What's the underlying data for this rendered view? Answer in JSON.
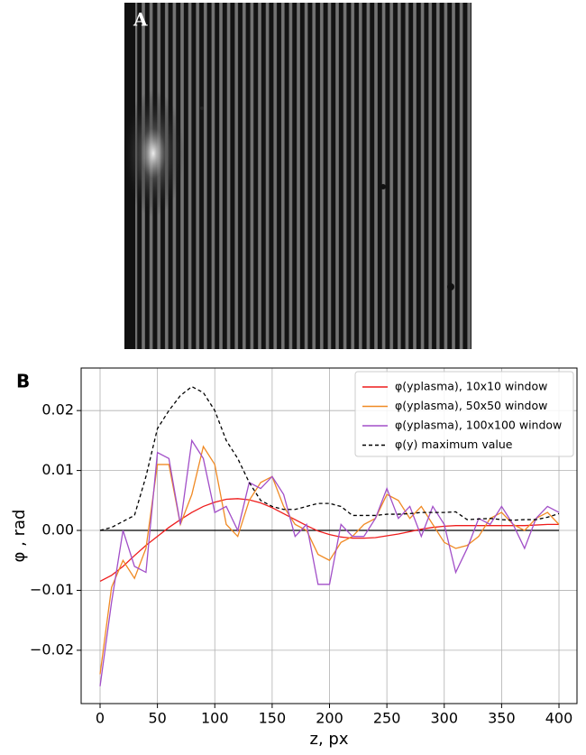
{
  "panel_labels": [
    "A",
    "B"
  ],
  "chart_data": {
    "type": "line",
    "x_label": "z, px",
    "y_label": "φ  , rad",
    "x": [
      0,
      10,
      20,
      30,
      40,
      50,
      60,
      70,
      80,
      90,
      100,
      110,
      120,
      130,
      140,
      150,
      160,
      170,
      180,
      190,
      200,
      210,
      220,
      230,
      240,
      250,
      260,
      270,
      280,
      290,
      300,
      310,
      320,
      330,
      340,
      350,
      360,
      370,
      380,
      390,
      400
    ],
    "series": [
      {
        "name": "φ(yplasma), 10x10 window",
        "color": "#ee1c1c",
        "dashed": false,
        "values": [
          -0.0085,
          -0.0075,
          -0.006,
          -0.0042,
          -0.0025,
          -0.001,
          0.0005,
          0.0018,
          0.003,
          0.004,
          0.0047,
          0.0052,
          0.0053,
          0.0051,
          0.0046,
          0.0038,
          0.0028,
          0.0018,
          0.0008,
          -0.0001,
          -0.0007,
          -0.0011,
          -0.0013,
          -0.0013,
          -0.0012,
          -0.0009,
          -0.0006,
          -0.0002,
          0.0002,
          0.0005,
          0.0007,
          0.0008,
          0.0008,
          0.0008,
          0.0008,
          0.0008,
          0.0008,
          0.0008,
          0.0009,
          0.001,
          0.001
        ]
      },
      {
        "name": "φ(yplasma), 50x50 window",
        "color": "#f08a24",
        "dashed": false,
        "values": [
          -0.024,
          -0.0095,
          -0.005,
          -0.008,
          -0.003,
          0.011,
          0.011,
          0.001,
          0.006,
          0.014,
          0.011,
          0.001,
          -0.001,
          0.005,
          0.008,
          0.009,
          0.004,
          0.001,
          0.0,
          -0.004,
          -0.005,
          -0.002,
          -0.001,
          0.001,
          0.002,
          0.006,
          0.005,
          0.002,
          0.004,
          0.001,
          -0.002,
          -0.003,
          -0.0025,
          -0.001,
          0.002,
          0.003,
          0.001,
          0.0,
          0.002,
          0.003,
          0.001
        ]
      },
      {
        "name": "φ(yplasma), 100x100 window",
        "color": "#a24fc8",
        "dashed": false,
        "values": [
          -0.026,
          -0.012,
          0.0,
          -0.006,
          -0.007,
          0.013,
          0.012,
          0.001,
          0.015,
          0.012,
          0.003,
          0.004,
          0.0,
          0.008,
          0.007,
          0.009,
          0.006,
          -0.001,
          0.001,
          -0.009,
          -0.009,
          0.001,
          -0.001,
          -0.001,
          0.002,
          0.007,
          0.002,
          0.004,
          -0.001,
          0.004,
          0.001,
          -0.007,
          -0.003,
          0.002,
          0.001,
          0.004,
          0.001,
          -0.003,
          0.002,
          0.004,
          0.003
        ]
      },
      {
        "name": "φ(y) maximum value",
        "color": "#000000",
        "dashed": true,
        "values": [
          0,
          0.0005,
          0.0015,
          0.0025,
          0.009,
          0.017,
          0.02,
          0.0225,
          0.024,
          0.023,
          0.02,
          0.015,
          0.012,
          0.008,
          0.005,
          0.004,
          0.0035,
          0.0035,
          0.004,
          0.0045,
          0.0045,
          0.004,
          0.0025,
          0.0025,
          0.0025,
          0.0027,
          0.0027,
          0.0028,
          0.003,
          0.003,
          0.003,
          0.0031,
          0.0018,
          0.0019,
          0.002,
          0.0018,
          0.0017,
          0.0018,
          0.0018,
          0.0022,
          0.0028
        ]
      }
    ],
    "hlines": [
      0
    ],
    "xlim": [
      -16.5,
      415.7
    ],
    "ylim": [
      -0.0289,
      0.0271
    ],
    "xticks": [
      0,
      50,
      100,
      150,
      200,
      250,
      300,
      350,
      400
    ],
    "yticks": [
      {
        "value": -0.02,
        "label": "−0.02"
      },
      {
        "value": -0.01,
        "label": "−0.01"
      },
      {
        "value": 0,
        "label": "0.00"
      },
      {
        "value": 0.01,
        "label": "0.01"
      },
      {
        "value": 0.02,
        "label": "0.02"
      }
    ],
    "grid": true,
    "legend": "upper right"
  }
}
